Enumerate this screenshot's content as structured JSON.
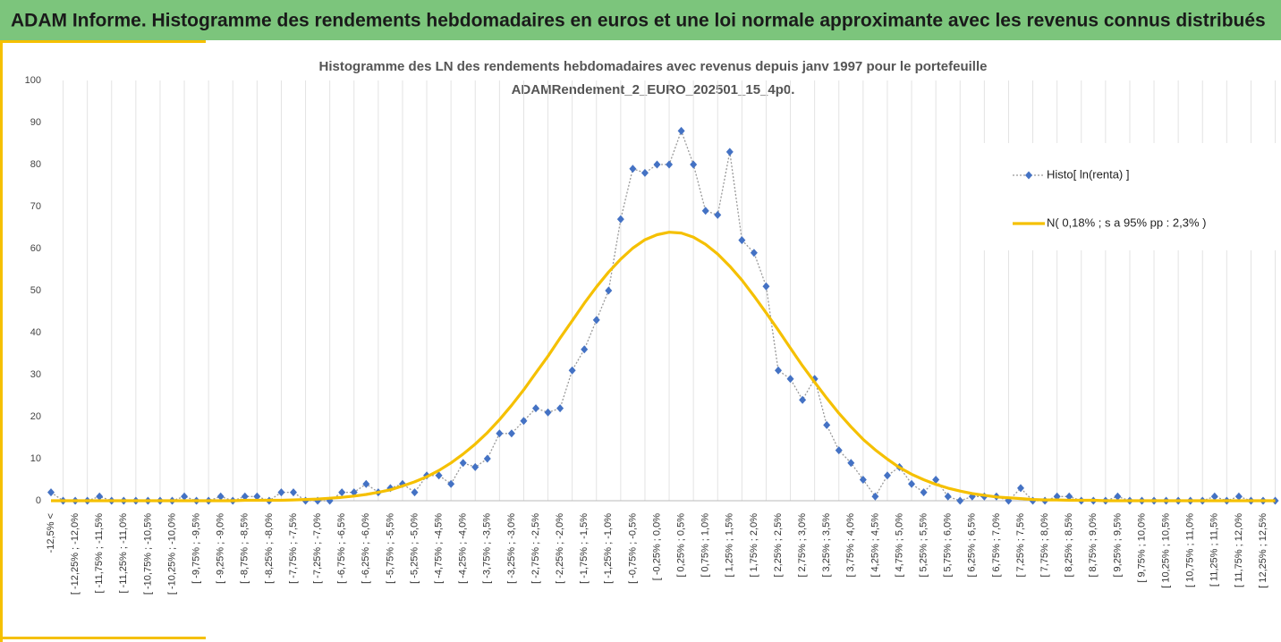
{
  "header": {
    "title": "ADAM Informe. Histogramme des rendements hebdomadaires en euros et une loi normale approximante avec les revenus connus distribués"
  },
  "chart_data": {
    "type": "line",
    "title": [
      "Histogramme des LN des rendements hebdomadaires avec revenus depuis janv 1997 pour le portefeuille",
      "ADAMRendement_2_EURO_202501_15_4p0."
    ],
    "categories": [
      "-12,5% <",
      null,
      "[ -12,25% ; -12,0%",
      null,
      "[ -11,75% ; -11,5%",
      null,
      "[ -11,25% ; -11,0%",
      null,
      "[ -10,75% ; -10,5%",
      null,
      "[ -10,25% ; -10,0%",
      null,
      "[ -9,75% ; -9,5%",
      null,
      "[ -9,25% ; -9,0%",
      null,
      "[ -8,75% ; -8,5%",
      null,
      "[ -8,25% ; -8,0%",
      null,
      "[ -7,75% ; -7,5%",
      null,
      "[ -7,25% ; -7,0%",
      null,
      "[ -6,75% ; -6,5%",
      null,
      "[ -6,25% ; -6,0%",
      null,
      "[ -5,75% ; -5,5%",
      null,
      "[ -5,25% ; -5,0%",
      null,
      "[ -4,75% ; -4,5%",
      null,
      "[ -4,25% ; -4,0%",
      null,
      "[ -3,75% ; -3,5%",
      null,
      "[ -3,25% ; -3,0%",
      null,
      "[ -2,75% ; -2,5%",
      null,
      "[ -2,25% ; -2,0%",
      null,
      "[ -1,75% ; -1,5%",
      null,
      "[ -1,25% ; -1,0%",
      null,
      "[ -0,75% ; -0,5%",
      null,
      "[ -0,25% ; 0,0%",
      null,
      "[ 0,25% ; 0,5%",
      null,
      "[ 0,75% ; 1,0%",
      null,
      "[ 1,25% ; 1,5%",
      null,
      "[ 1,75% ; 2,0%",
      null,
      "[ 2,25% ; 2,5%",
      null,
      "[ 2,75% ; 3,0%",
      null,
      "[ 3,25% ; 3,5%",
      null,
      "[ 3,75% ; 4,0%",
      null,
      "[ 4,25% ; 4,5%",
      null,
      "[ 4,75% ; 5,0%",
      null,
      "[ 5,25% ; 5,5%",
      null,
      "[ 5,75% ; 6,0%",
      null,
      "[ 6,25% ; 6,5%",
      null,
      "[ 6,75% ; 7,0%",
      null,
      "[ 7,25% ; 7,5%",
      null,
      "[ 7,75% ; 8,0%",
      null,
      "[ 8,25% ; 8,5%",
      null,
      "[ 8,75% ; 9,0%",
      null,
      "[ 9,25% ; 9,5%",
      null,
      "[ 9,75% ; 10,0%",
      null,
      "[ 10,25% ; 10,5%",
      null,
      "[ 10,75% ; 11,0%",
      null,
      "[ 11,25% ; 11,5%",
      null,
      "[ 11,75% ; 12,0%",
      null,
      "[ 12,25% ; 12,5%",
      null
    ],
    "series": [
      {
        "name": "Histo[ ln(renta) ]",
        "color": "#4472c4",
        "values": [
          2,
          0,
          0,
          0,
          1,
          0,
          0,
          0,
          0,
          0,
          0,
          1,
          0,
          0,
          1,
          0,
          1,
          1,
          0,
          2,
          2,
          0,
          0,
          0,
          2,
          2,
          4,
          2,
          3,
          4,
          2,
          6,
          6,
          4,
          9,
          8,
          10,
          16,
          16,
          19,
          22,
          21,
          22,
          31,
          36,
          43,
          50,
          67,
          79,
          78,
          80,
          80,
          88,
          80,
          69,
          68,
          83,
          62,
          59,
          51,
          31,
          29,
          24,
          29,
          18,
          12,
          9,
          5,
          1,
          6,
          8,
          4,
          2,
          5,
          1,
          0,
          1,
          1,
          1,
          0,
          3,
          0,
          0,
          1,
          1,
          0,
          0,
          0,
          1,
          0,
          0,
          0,
          0,
          0,
          0,
          0,
          1,
          0,
          1,
          0,
          0,
          0
        ]
      },
      {
        "name": "N( 0,18% ; s a 95% pp : 2,3% )",
        "color": "#f5c000",
        "values": [
          0,
          0,
          0,
          0,
          0,
          0,
          0,
          0,
          0,
          0,
          0,
          0,
          0,
          0,
          0,
          0,
          0.1,
          0.1,
          0.1,
          0.1,
          0.2,
          0.3,
          0.4,
          0.6,
          0.8,
          1.1,
          1.5,
          2.0,
          2.6,
          3.5,
          4.5,
          5.7,
          7.2,
          9.0,
          11.1,
          13.5,
          16.2,
          19.3,
          22.7,
          26.4,
          30.4,
          34.4,
          38.7,
          42.8,
          47.0,
          50.9,
          54.4,
          57.5,
          60.1,
          62.1,
          63.3,
          63.9,
          63.7,
          62.7,
          61.0,
          58.7,
          55.8,
          52.5,
          48.7,
          44.7,
          40.6,
          36.3,
          32.1,
          28.2,
          24.4,
          20.8,
          17.6,
          14.6,
          12.1,
          9.9,
          7.9,
          6.3,
          5.0,
          3.9,
          3.0,
          2.3,
          1.7,
          1.3,
          0.9,
          0.7,
          0.5,
          0.3,
          0.2,
          0.2,
          0.1,
          0.1,
          0.1,
          0,
          0,
          0,
          0,
          0,
          0,
          0,
          0,
          0,
          0,
          0,
          0,
          0,
          0,
          0
        ]
      }
    ],
    "ylim": [
      0,
      100
    ],
    "yticks": [
      0,
      10,
      20,
      30,
      40,
      50,
      60,
      70,
      80,
      90,
      100
    ],
    "legend": "right"
  }
}
